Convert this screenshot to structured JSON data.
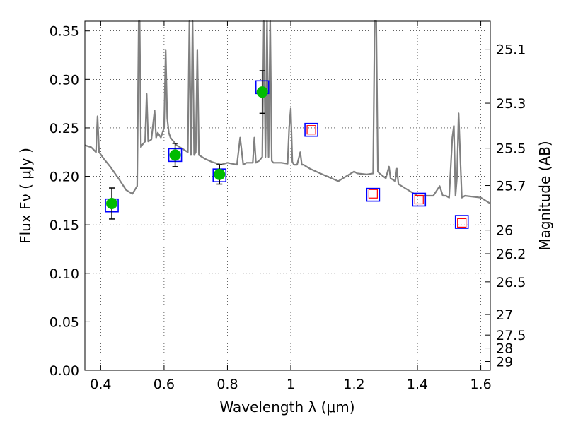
{
  "chart_data": {
    "type": "scatter",
    "title": "",
    "xlabel": "Wavelength  λ (μm)",
    "ylabel": "Flux  Fν  ( μJy )",
    "y2label": "Magnitude (AB)",
    "xlim": [
      0.35,
      1.63
    ],
    "ylim": [
      0.0,
      0.36
    ],
    "grid": true,
    "x_ticks": [
      0.4,
      0.6,
      0.8,
      1.0,
      1.2,
      1.4,
      1.6
    ],
    "x_tick_labels": [
      "0.4",
      "0.6",
      "0.8",
      "1",
      "1.2",
      "1.4",
      "1.6"
    ],
    "y_ticks": [
      0.0,
      0.05,
      0.1,
      0.15,
      0.2,
      0.25,
      0.3,
      0.35
    ],
    "y_tick_labels": [
      "0.00",
      "0.05",
      "0.10",
      "0.15",
      "0.20",
      "0.25",
      "0.30",
      "0.35"
    ],
    "magnitude_ticks": [
      25.1,
      25.3,
      25.5,
      25.7,
      26,
      26.2,
      26.5,
      27,
      27.5,
      28,
      29
    ],
    "magnitude_tick_labels": [
      "25.1",
      "25.3",
      "25.5",
      "25.7",
      "26",
      "26.2",
      "26.5",
      "27",
      "27.5",
      "28",
      "29"
    ],
    "series": [
      {
        "kind": "model-spectrum",
        "color": "#808080",
        "x": [
          0.35,
          0.37,
          0.385,
          0.39,
          0.395,
          0.41,
          0.43,
          0.46,
          0.48,
          0.5,
          0.515,
          0.52,
          0.523,
          0.527,
          0.53,
          0.54,
          0.545,
          0.55,
          0.56,
          0.57,
          0.575,
          0.58,
          0.59,
          0.6,
          0.605,
          0.61,
          0.615,
          0.62,
          0.64,
          0.66,
          0.675,
          0.68,
          0.685,
          0.69,
          0.695,
          0.7,
          0.705,
          0.71,
          0.73,
          0.75,
          0.78,
          0.8,
          0.83,
          0.84,
          0.85,
          0.86,
          0.88,
          0.885,
          0.89,
          0.9,
          0.91,
          0.915,
          0.92,
          0.925,
          0.93,
          0.935,
          0.94,
          0.945,
          0.95,
          0.97,
          0.99,
          0.995,
          1.0,
          1.005,
          1.01,
          1.02,
          1.03,
          1.035,
          1.04,
          1.06,
          1.1,
          1.15,
          1.2,
          1.21,
          1.24,
          1.26,
          1.265,
          1.27,
          1.275,
          1.28,
          1.3,
          1.31,
          1.315,
          1.33,
          1.335,
          1.34,
          1.36,
          1.4,
          1.45,
          1.47,
          1.48,
          1.49,
          1.5,
          1.51,
          1.515,
          1.52,
          1.525,
          1.53,
          1.54,
          1.55,
          1.6,
          1.63
        ],
        "y": [
          0.232,
          0.23,
          0.225,
          0.262,
          0.225,
          0.218,
          0.21,
          0.196,
          0.186,
          0.182,
          0.19,
          0.36,
          0.36,
          0.23,
          0.232,
          0.236,
          0.285,
          0.236,
          0.238,
          0.268,
          0.24,
          0.245,
          0.24,
          0.25,
          0.33,
          0.26,
          0.245,
          0.24,
          0.232,
          0.228,
          0.225,
          0.36,
          0.222,
          0.36,
          0.222,
          0.225,
          0.33,
          0.222,
          0.218,
          0.215,
          0.212,
          0.214,
          0.212,
          0.24,
          0.212,
          0.214,
          0.214,
          0.24,
          0.214,
          0.216,
          0.22,
          0.36,
          0.22,
          0.36,
          0.22,
          0.36,
          0.216,
          0.214,
          0.214,
          0.214,
          0.213,
          0.25,
          0.27,
          0.215,
          0.212,
          0.212,
          0.225,
          0.212,
          0.212,
          0.208,
          0.202,
          0.195,
          0.205,
          0.203,
          0.202,
          0.203,
          0.36,
          0.36,
          0.205,
          0.203,
          0.198,
          0.21,
          0.198,
          0.195,
          0.208,
          0.192,
          0.188,
          0.18,
          0.18,
          0.19,
          0.18,
          0.18,
          0.178,
          0.24,
          0.252,
          0.18,
          0.2,
          0.265,
          0.178,
          0.18,
          0.178,
          0.172
        ]
      },
      {
        "kind": "model-photometry",
        "marker": "square",
        "color": "#0000ff",
        "x": [
          0.435,
          0.635,
          0.775,
          0.91
        ],
        "y": [
          0.17,
          0.222,
          0.201,
          0.292
        ]
      },
      {
        "kind": "predicted-photometry",
        "marker": "square",
        "color": "#0000ff",
        "x": [
          1.065,
          1.26,
          1.405,
          1.54
        ],
        "y": [
          0.248,
          0.181,
          0.176,
          0.153
        ]
      },
      {
        "kind": "predicted-photometry-inner",
        "marker": "square",
        "color": "#ff0000",
        "x": [
          1.065,
          1.26,
          1.405,
          1.54
        ],
        "y": [
          0.248,
          0.182,
          0.176,
          0.152
        ]
      },
      {
        "kind": "observed-photometry",
        "marker": "circle",
        "color": "#00bb00",
        "x": [
          0.435,
          0.635,
          0.775,
          0.91
        ],
        "y": [
          0.172,
          0.222,
          0.202,
          0.287
        ],
        "yerr": [
          0.016,
          0.012,
          0.01,
          0.022
        ]
      }
    ]
  }
}
